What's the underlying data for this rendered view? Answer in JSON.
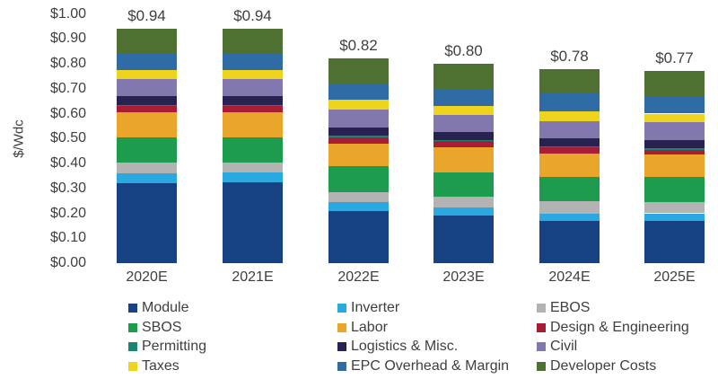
{
  "chart_data": {
    "type": "bar",
    "stacked": true,
    "ylabel": "$/Wdc",
    "categories": [
      "2020E",
      "2021E",
      "2022E",
      "2023E",
      "2024E",
      "2025E"
    ],
    "totals": [
      0.94,
      0.94,
      0.82,
      0.8,
      0.78,
      0.77
    ],
    "total_labels": [
      "$0.94",
      "$0.94",
      "$0.82",
      "$0.80",
      "$0.78",
      "$0.77"
    ],
    "ylim": [
      0,
      1.0
    ],
    "tick_values": [
      0.0,
      0.1,
      0.2,
      0.3,
      0.4,
      0.5,
      0.6,
      0.7,
      0.8,
      0.9,
      1.0
    ],
    "tick_labels": [
      "$0.00",
      "$0.10",
      "$0.20",
      "$0.30",
      "$0.40",
      "$0.50",
      "$0.60",
      "$0.70",
      "$0.80",
      "$0.90",
      "$1.00"
    ],
    "grid": "off",
    "legend_position": "bottom",
    "series": [
      {
        "name": "Module",
        "color": "#164183",
        "values": [
          0.32,
          0.325,
          0.21,
          0.19,
          0.17,
          0.17
        ]
      },
      {
        "name": "Inverter",
        "color": "#2aa9e0",
        "values": [
          0.04,
          0.04,
          0.035,
          0.035,
          0.03,
          0.03
        ]
      },
      {
        "name": "EBOS",
        "color": "#b3b3b3",
        "values": [
          0.045,
          0.04,
          0.04,
          0.04,
          0.05,
          0.045
        ]
      },
      {
        "name": "SBOS",
        "color": "#1e9c4d",
        "values": [
          0.1,
          0.1,
          0.105,
          0.1,
          0.095,
          0.1
        ]
      },
      {
        "name": "Labor",
        "color": "#eaa62b",
        "values": [
          0.1,
          0.1,
          0.09,
          0.1,
          0.095,
          0.09
        ]
      },
      {
        "name": "Design & Engineering",
        "color": "#a81d33",
        "values": [
          0.025,
          0.025,
          0.025,
          0.025,
          0.025,
          0.02
        ]
      },
      {
        "name": "Permitting",
        "color": "#1b8571",
        "values": [
          0.005,
          0.005,
          0.005,
          0.005,
          0.005,
          0.005
        ]
      },
      {
        "name": "Logistics & Misc.",
        "color": "#27224f",
        "values": [
          0.035,
          0.035,
          0.035,
          0.03,
          0.03,
          0.035
        ]
      },
      {
        "name": "Civil",
        "color": "#8278ae",
        "values": [
          0.07,
          0.07,
          0.07,
          0.07,
          0.07,
          0.07
        ]
      },
      {
        "name": "Taxes",
        "color": "#efd41d",
        "values": [
          0.035,
          0.035,
          0.04,
          0.035,
          0.04,
          0.035
        ]
      },
      {
        "name": "EPC Overhead & Margin",
        "color": "#2f6ba5",
        "values": [
          0.065,
          0.065,
          0.065,
          0.07,
          0.07,
          0.07
        ]
      },
      {
        "name": "Developer Costs",
        "color": "#4e7030",
        "values": [
          0.1,
          0.1,
          0.1,
          0.1,
          0.1,
          0.1
        ]
      }
    ],
    "legend_columns": [
      [
        "Module",
        "SBOS",
        "Permitting",
        "Taxes"
      ],
      [
        "Inverter",
        "Labor",
        "Logistics & Misc.",
        "EPC Overhead & Margin"
      ],
      [
        "EBOS",
        "Design & Engineering",
        "Civil",
        "Developer Costs"
      ]
    ]
  },
  "text_color": "#3f3f3f"
}
